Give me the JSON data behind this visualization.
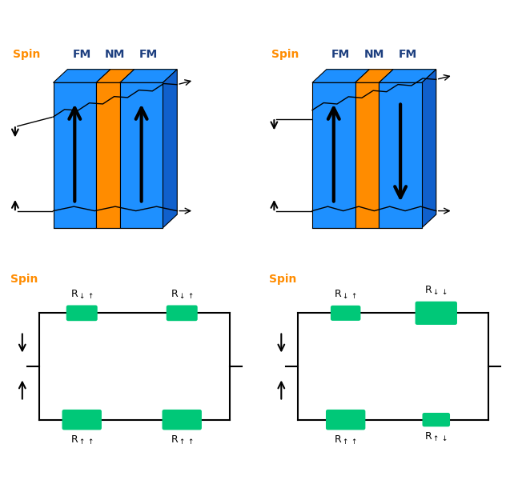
{
  "fm_color": "#1E90FF",
  "fm_dark": "#1060CC",
  "nm_color": "#FF8C00",
  "nm_dark": "#CC6600",
  "resistor_color": "#00C878",
  "line_color": "#000000",
  "text_color": "#000000",
  "spin_label_color": "#FF8C00",
  "fm_label_color": "#1E4080",
  "background": "#FFFFFF",
  "fm_label": "FM",
  "nm_label": "NM",
  "spin_label": "Spin"
}
